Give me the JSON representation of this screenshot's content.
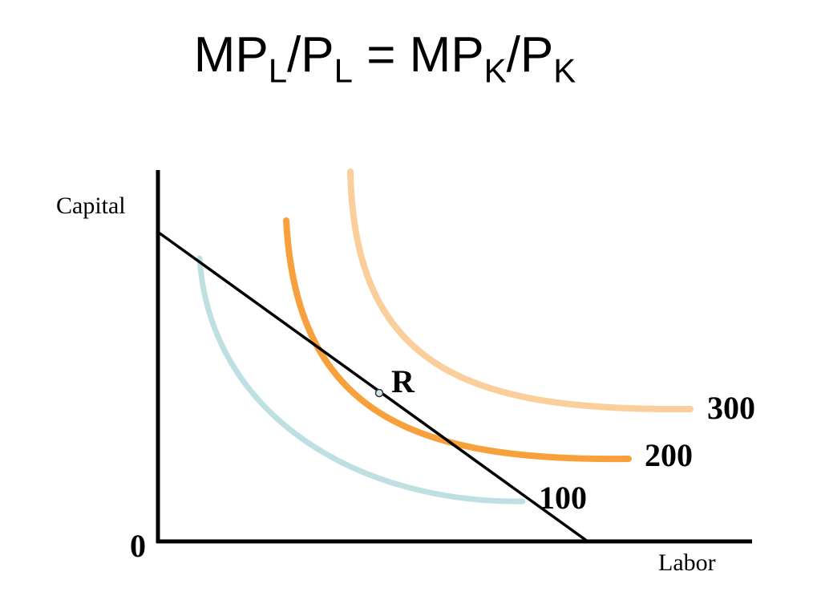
{
  "title": {
    "mp_l": "MP",
    "sub_l_1": "L",
    "slash_p_l": "/P",
    "sub_l_2": "L",
    "equals": " = ",
    "mp_k": "MP",
    "sub_k_1": "K",
    "slash_p_k": "/P",
    "sub_k_2": "K"
  },
  "axes": {
    "y_label": "Capital",
    "x_label": "Labor",
    "origin_label": "0"
  },
  "isoquants": [
    {
      "label": "100",
      "color": "#bfe0e3"
    },
    {
      "label": "200",
      "color": "#f7a03c"
    },
    {
      "label": "300",
      "color": "#fbcf9c"
    }
  ],
  "isocost": {
    "color": "#000000"
  },
  "point": {
    "label": "R",
    "fill": "#cfe6ea"
  }
}
